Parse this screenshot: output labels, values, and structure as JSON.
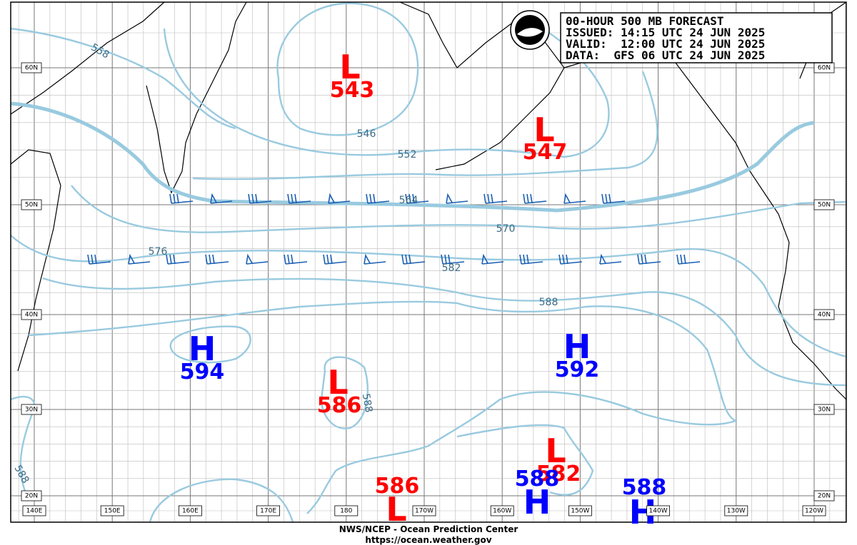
{
  "header": {
    "lines": [
      "00-HOUR 500 MB FORECAST",
      "ISSUED: 14:15 UTC 24 JUN 2025",
      "VALID:  12:00 UTC 24 JUN 2025",
      "DATA:  GFS 06 UTC 24 JUN 2025"
    ]
  },
  "pressure_centers": [
    {
      "symbol": "L",
      "value": 543
    },
    {
      "symbol": "L",
      "value": 547
    },
    {
      "symbol": "H",
      "value": 594
    },
    {
      "symbol": "L",
      "value": 586
    },
    {
      "symbol": "H",
      "value": 592
    },
    {
      "symbol": "L",
      "value": 582
    },
    {
      "symbol": "H",
      "value": 588
    },
    {
      "symbol": "H",
      "value": 588
    },
    {
      "symbol": "L",
      "value": 586
    }
  ],
  "contour_labels": [
    558,
    546,
    552,
    564,
    570,
    576,
    582,
    588,
    588,
    588
  ],
  "lat_labels": [
    "60N",
    "50N",
    "40N",
    "30N",
    "20N"
  ],
  "lon_labels": [
    "140E",
    "150E",
    "160E",
    "170E",
    "180",
    "170W",
    "160W",
    "150W",
    "140W",
    "130W",
    "120W"
  ],
  "footer": {
    "agency": "NWS/NCEP - Ocean Prediction Center",
    "url": "https://ocean.weather.gov"
  }
}
